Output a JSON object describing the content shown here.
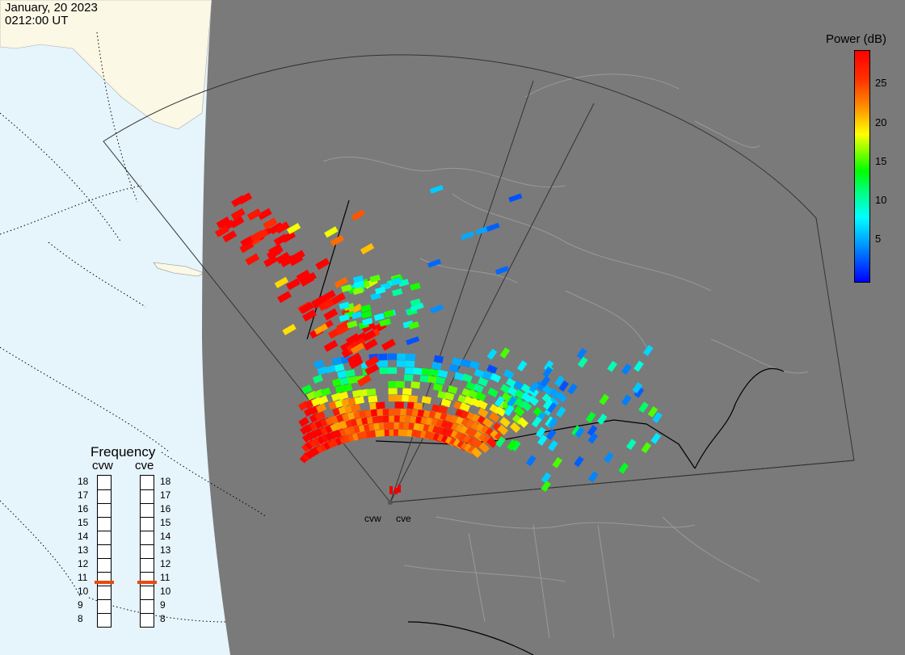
{
  "header": {
    "date": "January, 20 2023",
    "time": "0212:00 UT"
  },
  "colorbar": {
    "title": "Power (dB)",
    "ticks": [
      "25",
      "20",
      "15",
      "10",
      "5"
    ],
    "range": [
      0,
      30
    ],
    "colors": [
      "#0000ff",
      "#00ffff",
      "#00ff00",
      "#ffff00",
      "#ff8c00",
      "#ff0000"
    ]
  },
  "frequency": {
    "title": "Frequency",
    "radars": [
      "cvw",
      "cve"
    ],
    "levels": [
      "18",
      "17",
      "16",
      "15",
      "14",
      "13",
      "12",
      "11",
      "10",
      "9",
      "8"
    ],
    "selected": {
      "cvw": 10.8,
      "cve": 10.8
    },
    "marker_color": "#e84a10"
  },
  "sites": [
    "cvw",
    "cve"
  ],
  "map_colors": {
    "land": "#7a7a7a",
    "night_sky": "#e6f4fc",
    "day_land": "#fbf8e6",
    "fov": "#333333"
  }
}
